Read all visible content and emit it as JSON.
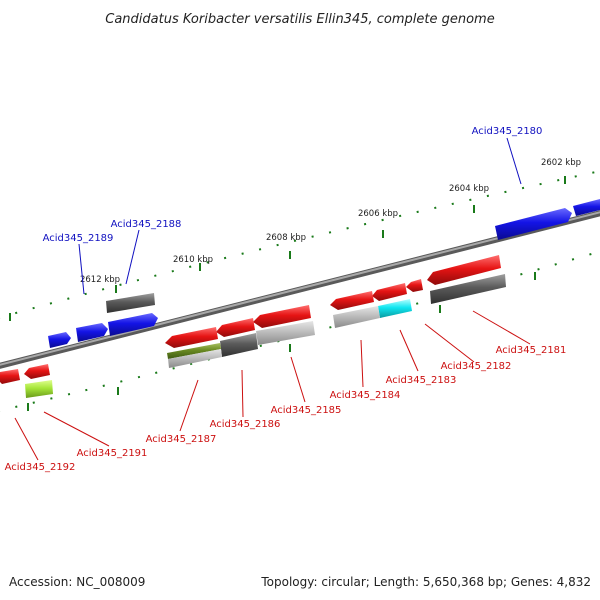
{
  "title": "Candidatus Koribacter versatilis Ellin345, complete genome",
  "footer": {
    "accession": "Accession: NC_008009",
    "stats": "Topology: circular; Length: 5,650,368 bp; Genes: 4,832"
  },
  "colors": {
    "forward": "#1414e6",
    "reverse": "#e61414",
    "backbone": "#888888",
    "tick": "#1a7a1a",
    "label_blue": "#1010c0",
    "label_red": "#cc1010"
  },
  "scale_labels": [
    "2602 kbp",
    "2604 kbp",
    "2606 kbp",
    "2608 kbp",
    "2610 kbp",
    "2612 kbp"
  ],
  "genes": [
    {
      "id": "Acid345_2180",
      "strand": "forward"
    },
    {
      "id": "Acid345_2181",
      "strand": "reverse"
    },
    {
      "id": "Acid345_2182",
      "strand": "reverse"
    },
    {
      "id": "Acid345_2183",
      "strand": "reverse"
    },
    {
      "id": "Acid345_2184",
      "strand": "reverse"
    },
    {
      "id": "Acid345_2185",
      "strand": "reverse"
    },
    {
      "id": "Acid345_2186",
      "strand": "reverse"
    },
    {
      "id": "Acid345_2187",
      "strand": "reverse"
    },
    {
      "id": "Acid345_2188",
      "strand": "forward"
    },
    {
      "id": "Acid345_2189",
      "strand": "forward"
    },
    {
      "id": "Acid345_2191",
      "strand": "reverse"
    },
    {
      "id": "Acid345_2192",
      "strand": "reverse"
    }
  ]
}
